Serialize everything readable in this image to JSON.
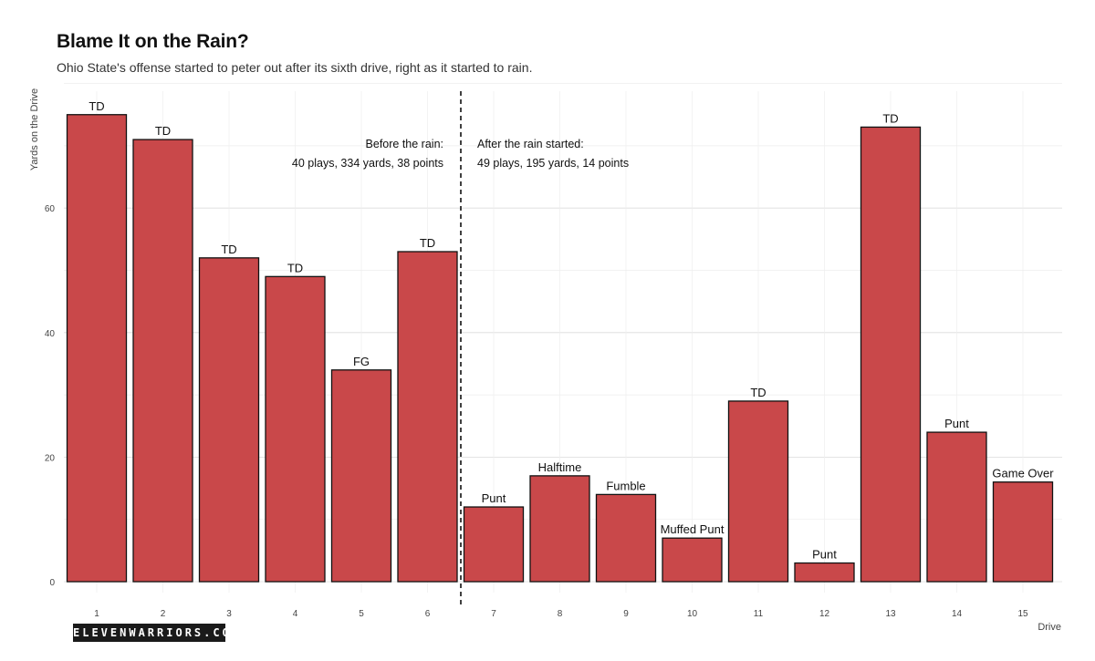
{
  "chart_data": {
    "type": "bar",
    "title": "Blame It on the Rain?",
    "subtitle": "Ohio State's offense started to peter out after its sixth drive, right as it started to rain.",
    "xlabel": "Drive",
    "ylabel": "Yards on the Drive",
    "categories": [
      "1",
      "2",
      "3",
      "4",
      "5",
      "6",
      "7",
      "8",
      "9",
      "10",
      "11",
      "12",
      "13",
      "14",
      "15"
    ],
    "values": [
      75,
      71,
      52,
      49,
      34,
      53,
      12,
      17,
      14,
      7,
      29,
      3,
      73,
      24,
      16
    ],
    "bar_labels": [
      "TD",
      "TD",
      "TD",
      "TD",
      "FG",
      "TD",
      "Punt",
      "Halftime",
      "Fumble",
      "Muffed Punt",
      "TD",
      "Punt",
      "TD",
      "Punt",
      "Game Over"
    ],
    "ylim": [
      0,
      80
    ],
    "yticks": [
      0,
      20,
      40,
      60
    ],
    "grid": true,
    "bar_color": "#c9484a",
    "divider_after_category": "6",
    "annotations": {
      "before_line1": "Before the rain:",
      "before_line2": "40 plays, 334 yards, 38 points",
      "after_line1": "After the rain started:",
      "after_line2": "49 plays, 195 yards, 14 points"
    }
  },
  "branding": {
    "logo_text": "ELEVENWARRIORS.COM"
  }
}
